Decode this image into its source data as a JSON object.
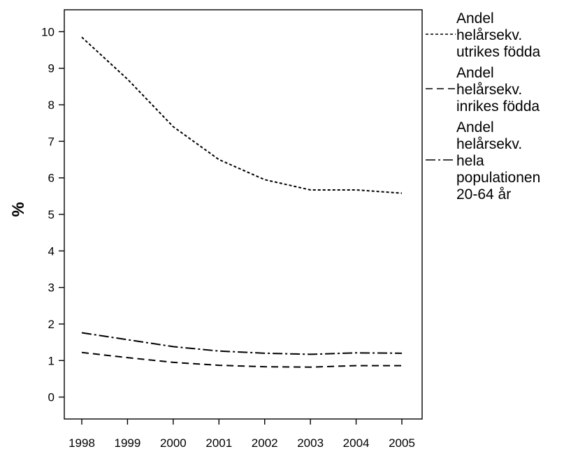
{
  "chart_data": {
    "type": "line",
    "title": "",
    "xlabel": "",
    "ylabel": "%",
    "ylim": [
      -0.6,
      10.6
    ],
    "yticks": [
      0,
      1,
      2,
      3,
      4,
      5,
      6,
      7,
      8,
      9,
      10
    ],
    "categories": [
      "1998",
      "1999",
      "2000",
      "2001",
      "2002",
      "2003",
      "2004",
      "2005"
    ],
    "grid": false,
    "legend_position": "right",
    "series": [
      {
        "name": "Andel helårsekv. utrikes födda",
        "legend_lines": [
          "Andel",
          "helårsekv.",
          "utrikes födda"
        ],
        "dash": "dotted",
        "color": "#000000",
        "values": [
          9.85,
          8.7,
          7.4,
          6.5,
          5.95,
          5.67,
          5.67,
          5.58
        ]
      },
      {
        "name": "Andel helårsekv. inrikes födda",
        "legend_lines": [
          "Andel",
          "helårsekv.",
          "inrikes födda"
        ],
        "dash": "dashed",
        "color": "#000000",
        "values": [
          1.22,
          1.08,
          0.95,
          0.87,
          0.83,
          0.82,
          0.86,
          0.86
        ]
      },
      {
        "name": "Andel helårsekv. hela populationen 20-64 år",
        "legend_lines": [
          "Andel",
          "helårsekv.",
          "hela",
          "populationen",
          "20-64 år"
        ],
        "dash": "dash-dot",
        "color": "#000000",
        "values": [
          1.76,
          1.57,
          1.38,
          1.26,
          1.2,
          1.17,
          1.21,
          1.2
        ]
      }
    ]
  }
}
